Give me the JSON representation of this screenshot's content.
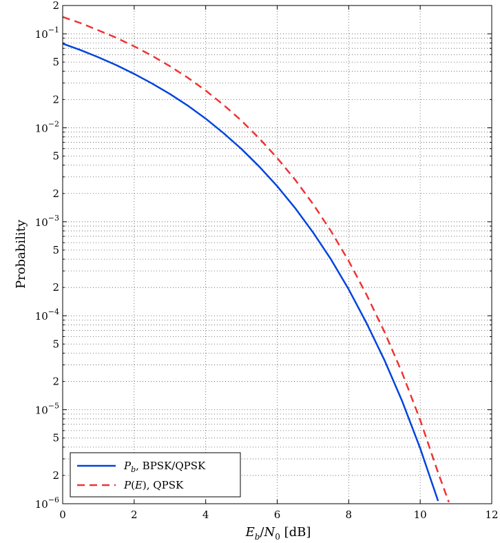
{
  "chart_data": {
    "type": "line",
    "title": "",
    "xlabel": {
      "E": "E",
      "b": "b",
      "slash": "/",
      "N": "N",
      "zero": "0",
      "unit": " [dB]"
    },
    "ylabel": "Probability",
    "xlim": [
      0,
      12
    ],
    "ylim": [
      1e-06,
      0.2
    ],
    "yscale": "log",
    "grid": true,
    "grid_style": "dotted",
    "legend_position": "bottom-left",
    "x_ticks": [
      0,
      2,
      4,
      6,
      8,
      10,
      12
    ],
    "y_decades": [
      {
        "value": 0.1,
        "base": "10",
        "exp": "−1"
      },
      {
        "value": 0.01,
        "base": "10",
        "exp": "−2"
      },
      {
        "value": 0.001,
        "base": "10",
        "exp": "−3"
      },
      {
        "value": 0.0001,
        "base": "10",
        "exp": "−4"
      },
      {
        "value": 1e-05,
        "base": "10",
        "exp": "−5"
      },
      {
        "value": 1e-06,
        "base": "10",
        "exp": "−6"
      }
    ],
    "y_minor_labels": [
      {
        "value": 0.2,
        "label": "2"
      },
      {
        "value": 0.05,
        "label": "5"
      },
      {
        "value": 0.02,
        "label": "2"
      },
      {
        "value": 0.005,
        "label": "5"
      },
      {
        "value": 0.002,
        "label": "2"
      },
      {
        "value": 0.0005,
        "label": "5"
      },
      {
        "value": 0.0002,
        "label": "2"
      },
      {
        "value": 5e-05,
        "label": "5"
      },
      {
        "value": 2e-05,
        "label": "2"
      },
      {
        "value": 5e-06,
        "label": "5"
      },
      {
        "value": 2e-06,
        "label": "2"
      }
    ],
    "series": [
      {
        "name": "P_b, BPSK/QPSK",
        "legend": {
          "main": "P",
          "sub": "b",
          "rest": ", BPSK/QPSK"
        },
        "color": "#0044dd",
        "dash": "solid",
        "x": [
          0,
          0.5,
          1,
          1.5,
          2,
          2.5,
          3,
          3.5,
          4,
          4.5,
          5,
          5.5,
          6,
          6.5,
          7,
          7.5,
          8,
          8.5,
          9,
          9.5,
          10,
          10.5
        ],
        "y": [
          0.0786,
          0.0671,
          0.0563,
          0.0464,
          0.0375,
          0.0296,
          0.0229,
          0.0172,
          0.0125,
          0.00878,
          0.00595,
          0.00386,
          0.00239,
          0.0014,
          0.000773,
          0.0004,
          0.000191,
          8.33e-05,
          3.36e-05,
          1.22e-05,
          3.87e-06,
          1.07e-06
        ]
      },
      {
        "name": "P(E), QPSK",
        "legend": {
          "main": "P",
          "paren_open": "(",
          "inner": "E",
          "paren_close": ")",
          "rest": ", QPSK"
        },
        "color": "#ee3333",
        "dash": "dashed",
        "x": [
          0,
          0.5,
          1,
          1.5,
          2,
          2.5,
          3,
          3.5,
          4,
          4.5,
          5,
          5.5,
          6,
          6.5,
          7,
          7.5,
          8,
          8.5,
          9,
          9.5,
          10,
          10.5,
          10.8
        ],
        "y": [
          0.151,
          0.13,
          0.109,
          0.0907,
          0.0736,
          0.0584,
          0.0452,
          0.0341,
          0.0249,
          0.0175,
          0.0119,
          0.00771,
          0.00477,
          0.0028,
          0.00155,
          0.0008,
          0.000382,
          0.000167,
          6.72e-05,
          2.44e-05,
          7.74e-06,
          2.14e-06,
          1.04e-06
        ]
      }
    ]
  }
}
